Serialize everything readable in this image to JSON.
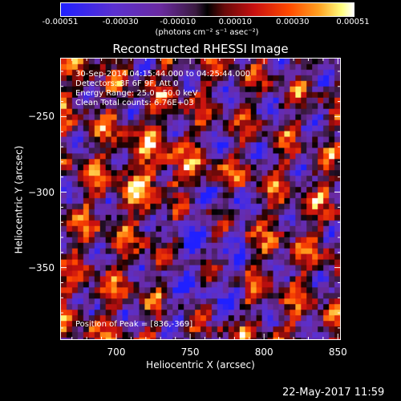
{
  "colorbar": {
    "ticks": [
      "-0.00051",
      "-0.00030",
      "-0.00010",
      "0.00010",
      "0.00030",
      "0.00051"
    ],
    "units": "(photons cm⁻² s⁻¹ asec⁻²)"
  },
  "title": "Reconstructed RHESSI Image",
  "annotations": {
    "line1": "30-Sep-2014 04:15:44.000 to 04:25:44.000",
    "line2": "Detectors: 3F 6F 9F, Att 0",
    "line3": "Energy Range: 25.0 - 50.0 keV",
    "line4": "Clean    Total counts: 6.76E+03",
    "peak": "Position of Peak = [836,-369]"
  },
  "footer": {
    "date": "22-May-2017 11:59"
  },
  "chart_data": {
    "type": "heatmap",
    "title": "Reconstructed RHESSI Image",
    "xlabel": "Heliocentric X (arcsec)",
    "ylabel": "Heliocentric Y (arcsec)",
    "xlim": [
      662,
      852
    ],
    "ylim": [
      -398,
      -211
    ],
    "xticks": [
      700,
      750,
      800,
      850
    ],
    "yticks": [
      -250,
      -300,
      -350
    ],
    "colorbar_range": [
      -0.00051,
      0.00051
    ],
    "colormap": "blue-purple-black-red-yellow-white",
    "peak": [
      836,
      -369
    ]
  }
}
